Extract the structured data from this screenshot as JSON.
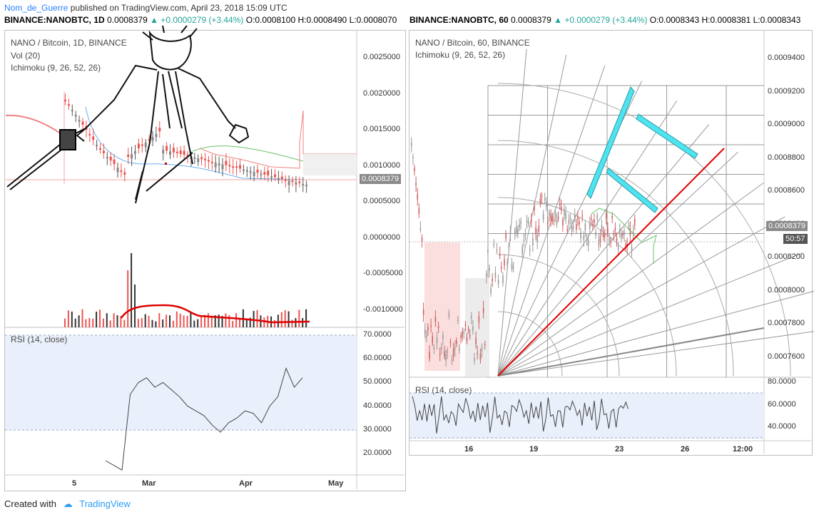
{
  "header": {
    "author": "Nom_de_Guerre",
    "published": " published on TradingView.com, April 23, 2018 15:09 UTC"
  },
  "ticker_left": {
    "symbol": "BINANCE:NANOBTC, 1D",
    "price": "0.0008379",
    "change": "▲ +0.0000279 (+3.44%)",
    "open": "O:0.0008100",
    "high": "H:0.0008490",
    "low": "L:0.0008070"
  },
  "ticker_right": {
    "symbol": "BINANCE:NANOBTC, 60",
    "price": "0.0008379",
    "change": "▲ +0.0000279 (+3.44%)",
    "open": "O:0.0008343",
    "high": "H:0.0008381",
    "low": "L:0.0008343"
  },
  "left_chart": {
    "title": "NANO / Bitcoin, 1D, BINANCE",
    "vol_label": "Vol (20)",
    "ichimoku_label": "Ichimoku (9, 26, 52, 26)",
    "rsi_label": "RSI (14, close)",
    "price_ticks": [
      "0.0025000",
      "0.0020000",
      "0.0015000",
      "0.0010000",
      "0.0005000",
      "0.0000000",
      "-0.0005000",
      "-0.0010000"
    ],
    "last_price": "0.0008379",
    "rsi_ticks": [
      "70.0000",
      "60.0000",
      "50.0000",
      "40.0000",
      "30.0000",
      "20.0000"
    ],
    "x_ticks": [
      "5",
      "Mar",
      "Apr",
      "May"
    ]
  },
  "right_chart": {
    "title": "NANO / Bitcoin, 60, BINANCE",
    "ichimoku_label": "Ichimoku (9, 26, 52, 26)",
    "rsi_label": "RSI (14, close)",
    "price_ticks": [
      "0.0009400",
      "0.0009200",
      "0.0009000",
      "0.0008800",
      "0.0008600",
      "0.0008400",
      "0.0008200",
      "0.0008000",
      "0.0007800",
      "0.0007600"
    ],
    "last_price": "0.0008379",
    "timer": "50:57",
    "rsi_ticks": [
      "80.0000",
      "60.0000",
      "40.0000"
    ],
    "x_ticks": [
      "16",
      "19",
      "23",
      "26",
      "12:00"
    ]
  },
  "footer": {
    "created": "Created with",
    "brand": "TradingView"
  },
  "colors": {
    "up": "#26a69a",
    "down": "#ef5350",
    "trend": "#e00000",
    "cyan": "#4fe3f0",
    "rsi_band": "#eaf0fb"
  },
  "chart_data": [
    {
      "type": "candlestick",
      "title": "NANO / Bitcoin, 1D, BINANCE",
      "x": [
        "5",
        "Mar",
        "Apr",
        "May"
      ],
      "ylim": [
        -0.0011,
        0.0028
      ],
      "last": 0.0008379,
      "rsi": [
        17,
        15,
        13,
        45,
        50,
        52,
        48,
        50,
        47,
        44,
        40,
        38,
        36,
        32,
        29,
        33,
        35,
        38,
        37,
        33,
        40,
        44,
        56,
        48,
        52
      ]
    },
    {
      "type": "candlestick",
      "title": "NANO / Bitcoin, 60, BINANCE",
      "x": [
        "16",
        "19",
        "23",
        "26",
        "12:00"
      ],
      "ylim": [
        0.00074,
        0.00095
      ],
      "last": 0.0008379,
      "rsi": [
        70,
        55,
        48,
        62,
        44,
        58,
        50,
        66,
        46,
        60,
        40,
        52,
        64,
        48,
        58,
        42,
        50,
        56,
        46,
        58,
        55,
        60
      ]
    }
  ]
}
